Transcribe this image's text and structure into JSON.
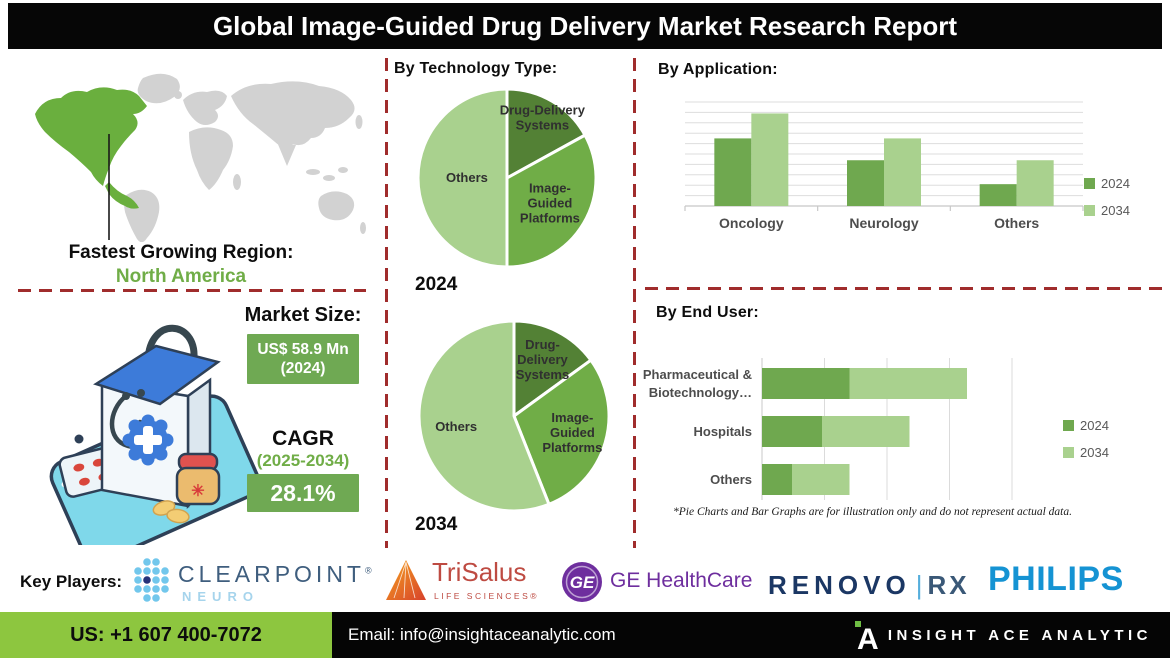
{
  "title": "Global Image-Guided Drug Delivery Market Research Report",
  "left": {
    "region_label": "Fastest Growing Region:",
    "region_value": "North America",
    "market_size_label": "Market Size:",
    "market_size_value": "US$ 58.9 Mn",
    "market_size_year": "(2024)",
    "cagr_label": "CAGR",
    "cagr_period": "(2025-2034)",
    "cagr_value": "28.1%"
  },
  "sections": {
    "technology_heading": "By Technology Type:",
    "application_heading": "By Application:",
    "end_user_heading": "By End User:",
    "footnote": "*Pie Charts and Bar Graphs are for illustration only and do not represent actual data."
  },
  "key_players": {
    "label": "Key Players:",
    "clearpoint": {
      "name": "CLEARPOINT",
      "reg": "®",
      "sub": "NEURO"
    },
    "trisalus": {
      "name": "TriSalus",
      "sub": "LIFE SCIENCES®"
    },
    "ge": {
      "monogram": "GE",
      "name": "GE HealthCare"
    },
    "renovorx": {
      "name": "RENOVO",
      "divider": "|",
      "suffix": "RX"
    },
    "philips": {
      "name": "PHILIPS"
    }
  },
  "footer": {
    "phone": "US: +1 607 400-7072",
    "email": "Email: info@insightaceanalytic.com",
    "brand": "INSIGHT ACE ANALYTIC"
  },
  "colors": {
    "pie_dark_green": "#538135",
    "pie_mid_green": "#70AD47",
    "pie_light_green": "#A9D18E",
    "bar_2024": "#6FA84F",
    "bar_2034": "#A9D18E",
    "map_highlight": "#6AAF3E",
    "map_land": "#D2D2D2",
    "dashed_line": "#A02C2C",
    "footer_green": "#8DC63F",
    "value_box_green": "#6FA953",
    "title_bg": "#060606"
  },
  "chart_data": [
    {
      "id": "pie-2024",
      "type": "pie",
      "title": "2024",
      "slices": [
        {
          "label": "Drug-Delivery Systems",
          "label_lines": [
            "Drug-Delivery",
            "Systems"
          ],
          "value": 17,
          "color": "#538135",
          "label_r": 0.78
        },
        {
          "label": "Image-Guided Platforms",
          "label_lines": [
            "Image-",
            "Guided",
            "Platforms"
          ],
          "value": 33,
          "color": "#70AD47",
          "label_r": 0.56
        },
        {
          "label": "Others",
          "label_lines": [
            "Others"
          ],
          "value": 50,
          "color": "#A9D18E",
          "label_r": 0.45
        }
      ]
    },
    {
      "id": "pie-2034",
      "type": "pie",
      "title": "2034",
      "slices": [
        {
          "label": "Drug-Delivery Systems",
          "label_lines": [
            "Drug-",
            "Delivery",
            "Systems"
          ],
          "value": 15,
          "color": "#538135",
          "label_r": 0.66
        },
        {
          "label": "Image-Guided Platforms",
          "label_lines": [
            "Image-",
            "Guided",
            "Platforms"
          ],
          "value": 29,
          "color": "#70AD47",
          "label_r": 0.64
        },
        {
          "label": "Others",
          "label_lines": [
            "Others"
          ],
          "value": 56,
          "color": "#A9D18E",
          "label_r": 0.62
        }
      ]
    },
    {
      "id": "app-chart",
      "type": "bar",
      "title": "By Application:",
      "categories": [
        "Oncology",
        "Neurology",
        "Others"
      ],
      "series": [
        {
          "name": "2024",
          "color": "#6FA84F",
          "values": [
            6.5,
            4.4,
            2.1
          ]
        },
        {
          "name": "2034",
          "color": "#A9D18E",
          "values": [
            8.9,
            6.5,
            4.4
          ]
        }
      ],
      "ylim": [
        0,
        10
      ],
      "grid_step": 1,
      "legend_position": "right",
      "grid": true
    },
    {
      "id": "eu-chart",
      "type": "stacked-hbar",
      "title": "By End User:",
      "categories": [
        [
          "Pharmaceutical &",
          "Biotechnology…"
        ],
        [
          "Hospitals"
        ],
        [
          "Others"
        ]
      ],
      "series": [
        {
          "name": "2024",
          "color": "#6FA84F",
          "values": [
            3.5,
            2.4,
            1.2
          ]
        },
        {
          "name": "2034",
          "color": "#A9D18E",
          "values": [
            4.7,
            3.5,
            2.3
          ]
        }
      ],
      "xlim": [
        0,
        10
      ],
      "grid_step": 2.5,
      "legend_position": "right",
      "grid": true
    }
  ]
}
